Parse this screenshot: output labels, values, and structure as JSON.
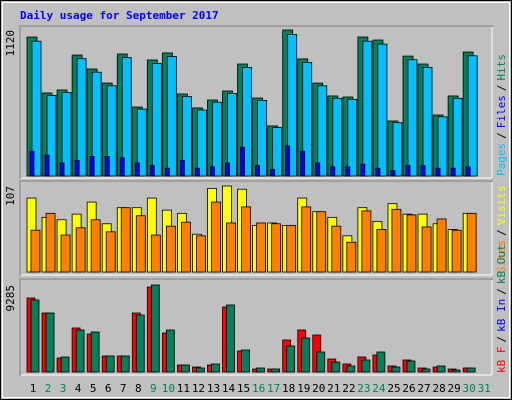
{
  "chart_data": [
    {
      "type": "bar",
      "title": "Daily usage for September 2017",
      "ylim": [
        0,
        1120
      ],
      "yticks": [
        1120
      ],
      "legend_separator": "/",
      "series": [
        {
          "name": "Hits",
          "color": "#00805c",
          "values": [
            1066,
            637,
            660,
            928,
            821,
            713,
            936,
            529,
            890,
            944,
            629,
            522,
            583,
            652,
            859,
            598,
            384,
            1120,
            898,
            713,
            614,
            606,
            1066,
            1043,
            422,
            920,
            859,
            468,
            614,
            951,
            null
          ]
        },
        {
          "name": "Pages",
          "color": "#00c0ff",
          "values": [
            1034,
            618,
            640,
            900,
            796,
            692,
            908,
            513,
            863,
            916,
            610,
            506,
            566,
            632,
            833,
            580,
            372,
            1086,
            871,
            692,
            596,
            588,
            1034,
            1012,
            409,
            892,
            833,
            454,
            596,
            922,
            null
          ]
        },
        {
          "name": "Files",
          "color": "#0000ff",
          "values": [
            190,
            160,
            100,
            120,
            150,
            150,
            140,
            100,
            80,
            60,
            120,
            60,
            70,
            100,
            220,
            80,
            50,
            230,
            190,
            100,
            70,
            70,
            90,
            60,
            40,
            80,
            80,
            60,
            60,
            70,
            null
          ]
        }
      ]
    },
    {
      "type": "bar",
      "ylim": [
        0,
        107
      ],
      "yticks": [
        107
      ],
      "legend_separator": "/",
      "series": [
        {
          "name": "Visits",
          "color": "#ffff00",
          "values": [
            92,
            68,
            65,
            72,
            87,
            60,
            80,
            80,
            92,
            77,
            73,
            47,
            104,
            107,
            103,
            58,
            61,
            58,
            92,
            75,
            68,
            45,
            80,
            63,
            85,
            72,
            72,
            60,
            53,
            73,
            null
          ]
        },
        {
          "name": "Sites",
          "color": "#ff8000",
          "values": [
            52,
            73,
            46,
            55,
            65,
            50,
            80,
            70,
            46,
            57,
            62,
            45,
            87,
            61,
            81,
            61,
            60,
            58,
            81,
            75,
            57,
            37,
            76,
            53,
            78,
            71,
            56,
            66,
            52,
            73,
            null
          ]
        }
      ]
    },
    {
      "type": "bar",
      "ylim": [
        0,
        9285
      ],
      "yticks": [
        9285
      ],
      "legend_separator": "/",
      "categories": [
        "1",
        "2",
        "3",
        "4",
        "5",
        "6",
        "7",
        "8",
        "9",
        "10",
        "11",
        "12",
        "13",
        "14",
        "15",
        "16",
        "17",
        "18",
        "19",
        "20",
        "21",
        "22",
        "23",
        "24",
        "25",
        "26",
        "27",
        "28",
        "29",
        "30",
        "31"
      ],
      "category_colors": [
        "#000000",
        "#00805c",
        "#00805c",
        "#000000",
        "#000000",
        "#000000",
        "#000000",
        "#000000",
        "#00805c",
        "#00805c",
        "#000000",
        "#000000",
        "#000000",
        "#000000",
        "#000000",
        "#00805c",
        "#00805c",
        "#000000",
        "#000000",
        "#000000",
        "#000000",
        "#000000",
        "#00805c",
        "#00805c",
        "#000000",
        "#000000",
        "#000000",
        "#000000",
        "#000000",
        "#00805c",
        "#00805c"
      ],
      "series": [
        {
          "name": "kB F",
          "color": "#ff0000",
          "values": [
            7897,
            6295,
            1494,
            4695,
            4055,
            1707,
            1707,
            6295,
            9071,
            4162,
            747,
            534,
            747,
            6935,
            2241,
            320,
            320,
            3415,
            4482,
            3949,
            1387,
            854,
            1601,
            1814,
            640,
            1281,
            427,
            534,
            320,
            427,
            null
          ]
        },
        {
          "name": "kB In",
          "color": "#0000ff",
          "values": [
            0,
            0,
            0,
            0,
            0,
            0,
            0,
            0,
            0,
            0,
            0,
            0,
            0,
            0,
            0,
            0,
            0,
            0,
            0,
            0,
            0,
            0,
            0,
            0,
            0,
            0,
            0,
            0,
            0,
            0,
            null
          ]
        },
        {
          "name": "kB Out",
          "color": "#00805c",
          "values": [
            7684,
            6295,
            1601,
            4482,
            4268,
            1707,
            1707,
            6082,
            9285,
            4482,
            747,
            427,
            854,
            7150,
            2348,
            427,
            320,
            2775,
            3628,
            2134,
            1067,
            640,
            1281,
            2134,
            534,
            1174,
            320,
            640,
            213,
            427,
            null
          ]
        }
      ]
    }
  ]
}
